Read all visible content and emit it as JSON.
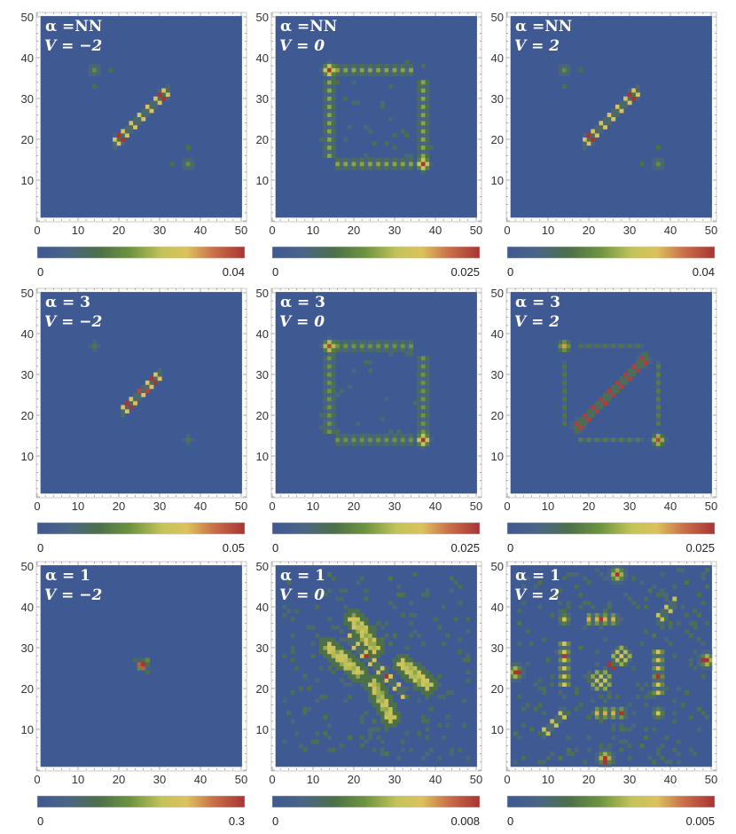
{
  "chart_data": {
    "type": "heatmap",
    "title": "",
    "xlabel": "",
    "ylabel": "",
    "x_range": [
      0,
      50
    ],
    "y_range": [
      0,
      50
    ],
    "x_ticks": [
      "0",
      "10",
      "20",
      "30",
      "40",
      "50"
    ],
    "y_ticks": [
      "10",
      "20",
      "30",
      "40",
      "50"
    ],
    "grid": false,
    "background_color": "#3f5993",
    "colormap": [
      [
        0,
        "#3f5993"
      ],
      [
        0.15,
        "#4a6585"
      ],
      [
        0.3,
        "#4d7048"
      ],
      [
        0.45,
        "#6e9440"
      ],
      [
        0.6,
        "#c3c35a"
      ],
      [
        0.72,
        "#dcc25c"
      ],
      [
        0.85,
        "#c9704a"
      ],
      [
        1,
        "#a83434"
      ]
    ],
    "value_note": "feature levels are fractions of each panel's colorbar maximum",
    "panels": [
      {
        "alpha_label": "α =NN",
        "v_label": "V = −2",
        "cbar_min": "0",
        "cbar_max": "0.04",
        "features": [
          {
            "t": "diag",
            "a": 19,
            "b": 32,
            "k": 0,
            "s": 1,
            "v": 0.7
          },
          {
            "t": "blob",
            "c": [
              20,
              20
            ],
            "r": 1.6,
            "v": 0.3
          },
          {
            "t": "blob",
            "c": [
              31,
              31
            ],
            "r": 1.6,
            "v": 0.3
          },
          {
            "t": "cells",
            "list": [
              [
                20,
                21,
                1
              ],
              [
                21,
                20,
                1
              ],
              [
                30,
                31,
                1
              ],
              [
                31,
                30,
                1
              ],
              [
                19,
                20,
                0.65
              ],
              [
                20,
                19,
                0.65
              ],
              [
                31,
                32,
                0.65
              ],
              [
                32,
                31,
                0.65
              ]
            ]
          },
          {
            "t": "blob",
            "c": [
              14,
              37
            ],
            "r": 1.2,
            "v": 0.42
          },
          {
            "t": "blob",
            "c": [
              37,
              14
            ],
            "r": 1.2,
            "v": 0.42
          },
          {
            "t": "blob",
            "c": [
              18,
              37
            ],
            "r": 0.6,
            "v": 0.3
          },
          {
            "t": "blob",
            "c": [
              14,
              33
            ],
            "r": 0.6,
            "v": 0.3
          },
          {
            "t": "blob",
            "c": [
              33,
              14
            ],
            "r": 0.6,
            "v": 0.3
          },
          {
            "t": "blob",
            "c": [
              37,
              18
            ],
            "r": 0.6,
            "v": 0.3
          }
        ]
      },
      {
        "alpha_label": "α =NN",
        "v_label": "V = 0",
        "cbar_min": "0",
        "cbar_max": "0.025",
        "features": [
          {
            "t": "blob",
            "c": [
              14,
              37
            ],
            "r": 1.4,
            "v": 1
          },
          {
            "t": "blob",
            "c": [
              37,
              14
            ],
            "r": 1.4,
            "v": 1
          },
          {
            "t": "ladder",
            "from": [
              14,
              16
            ],
            "to": [
              14,
              34
            ],
            "w": 1,
            "v": 0.5
          },
          {
            "t": "ladder",
            "from": [
              16,
              37
            ],
            "to": [
              34,
              37
            ],
            "w": 1,
            "v": 0.5
          },
          {
            "t": "ladder",
            "from": [
              37,
              16
            ],
            "to": [
              37,
              34
            ],
            "w": 1,
            "v": 0.5
          },
          {
            "t": "ladder",
            "from": [
              16,
              14
            ],
            "to": [
              34,
              14
            ],
            "w": 1,
            "v": 0.5
          },
          {
            "t": "noise",
            "seed": 5,
            "n": 40,
            "v": 0.3,
            "box": [
              12,
              12,
              39,
              39
            ]
          }
        ]
      },
      {
        "alpha_label": "α =NN",
        "v_label": "V = 2",
        "cbar_min": "0",
        "cbar_max": "0.04",
        "features": [
          {
            "t": "diag",
            "a": 19,
            "b": 32,
            "k": 0,
            "s": 1,
            "v": 0.7
          },
          {
            "t": "blob",
            "c": [
              20,
              20
            ],
            "r": 1.6,
            "v": 0.3
          },
          {
            "t": "blob",
            "c": [
              31,
              31
            ],
            "r": 1.6,
            "v": 0.3
          },
          {
            "t": "cells",
            "list": [
              [
                20,
                21,
                1
              ],
              [
                21,
                20,
                1
              ],
              [
                30,
                31,
                1
              ],
              [
                31,
                30,
                1
              ],
              [
                19,
                20,
                0.65
              ],
              [
                20,
                19,
                0.65
              ],
              [
                31,
                32,
                0.65
              ],
              [
                32,
                31,
                0.65
              ]
            ]
          },
          {
            "t": "blob",
            "c": [
              14,
              37
            ],
            "r": 1.2,
            "v": 0.42
          },
          {
            "t": "blob",
            "c": [
              37,
              14
            ],
            "r": 1.2,
            "v": 0.42
          },
          {
            "t": "blob",
            "c": [
              18,
              37
            ],
            "r": 0.6,
            "v": 0.3
          },
          {
            "t": "blob",
            "c": [
              14,
              33
            ],
            "r": 0.6,
            "v": 0.3
          },
          {
            "t": "blob",
            "c": [
              33,
              14
            ],
            "r": 0.6,
            "v": 0.3
          },
          {
            "t": "blob",
            "c": [
              37,
              18
            ],
            "r": 0.6,
            "v": 0.3
          }
        ]
      },
      {
        "alpha_label": "α = 3",
        "v_label": "V = −2",
        "cbar_min": "0",
        "cbar_max": "0.05",
        "features": [
          {
            "t": "diag",
            "a": 21,
            "b": 30,
            "k": 0,
            "s": 1,
            "v": 0.72
          },
          {
            "t": "blob",
            "c": [
              21.5,
              21.5
            ],
            "r": 1.3,
            "v": 0.3
          },
          {
            "t": "blob",
            "c": [
              29.5,
              29.5
            ],
            "r": 1.3,
            "v": 0.3
          },
          {
            "t": "cells",
            "list": [
              [
                22,
                23,
                1
              ],
              [
                23,
                22,
                1
              ],
              [
                29,
                28,
                1
              ],
              [
                28,
                29,
                1
              ],
              [
                25,
                26,
                0.95
              ],
              [
                27,
                26,
                0.95
              ]
            ]
          },
          {
            "t": "blob",
            "c": [
              14,
              37
            ],
            "r": 1.0,
            "v": 0.32
          },
          {
            "t": "blob",
            "c": [
              37,
              14
            ],
            "r": 1.0,
            "v": 0.32
          }
        ]
      },
      {
        "alpha_label": "α = 3",
        "v_label": "V = 0",
        "cbar_min": "0",
        "cbar_max": "0.025",
        "features": [
          {
            "t": "blob",
            "c": [
              14,
              37
            ],
            "r": 1.4,
            "v": 0.95
          },
          {
            "t": "blob",
            "c": [
              37,
              14
            ],
            "r": 1.4,
            "v": 1
          },
          {
            "t": "ladder",
            "from": [
              14,
              16
            ],
            "to": [
              14,
              34
            ],
            "w": 1,
            "v": 0.45
          },
          {
            "t": "ladder",
            "from": [
              16,
              37
            ],
            "to": [
              34,
              37
            ],
            "w": 1,
            "v": 0.45
          },
          {
            "t": "ladder",
            "from": [
              37,
              16
            ],
            "to": [
              37,
              34
            ],
            "w": 1,
            "v": 0.45
          },
          {
            "t": "ladder",
            "from": [
              16,
              14
            ],
            "to": [
              34,
              14
            ],
            "w": 1,
            "v": 0.45
          },
          {
            "t": "noise",
            "seed": 9,
            "n": 30,
            "v": 0.28,
            "box": [
              12,
              12,
              39,
              39
            ]
          }
        ]
      },
      {
        "alpha_label": "α = 3",
        "v_label": "V = 2",
        "cbar_min": "0",
        "cbar_max": "0.025",
        "features": [
          {
            "t": "diag",
            "a": 17,
            "b": 34,
            "k": 0,
            "s": 1,
            "v": 0.97
          },
          {
            "t": "blob",
            "c": [
              17.5,
              17.5
            ],
            "r": 1.5,
            "v": 0.35
          },
          {
            "t": "blob",
            "c": [
              33.5,
              33.5
            ],
            "r": 1.5,
            "v": 0.35
          },
          {
            "t": "blob",
            "c": [
              14,
              37
            ],
            "r": 1.3,
            "v": 0.78
          },
          {
            "t": "blob",
            "c": [
              37,
              14
            ],
            "r": 1.3,
            "v": 0.95
          },
          {
            "t": "ladder",
            "from": [
              14,
              18
            ],
            "to": [
              14,
              33
            ],
            "w": 0,
            "v": 0.32
          },
          {
            "t": "ladder",
            "from": [
              18,
              37
            ],
            "to": [
              33,
              37
            ],
            "w": 0,
            "v": 0.32
          },
          {
            "t": "ladder",
            "from": [
              37,
              18
            ],
            "to": [
              37,
              33
            ],
            "w": 0,
            "v": 0.35
          },
          {
            "t": "ladder",
            "from": [
              18,
              14
            ],
            "to": [
              33,
              14
            ],
            "w": 0,
            "v": 0.35
          }
        ]
      },
      {
        "alpha_label": "α = 1",
        "v_label": "V = −2",
        "cbar_min": "0",
        "cbar_max": "0.3",
        "features": [
          {
            "t": "blob",
            "c": [
              26,
              26
            ],
            "r": 0.9,
            "v": 1
          },
          {
            "t": "cells",
            "list": [
              [
                25,
                26,
                0.9
              ],
              [
                26,
                25,
                0.9
              ],
              [
                27,
                27,
                0.4
              ],
              [
                25,
                25,
                0.4
              ],
              [
                24,
                27,
                0.3
              ],
              [
                27,
                24,
                0.3
              ]
            ]
          }
        ]
      },
      {
        "alpha_label": "α = 1",
        "v_label": "V = 0",
        "cbar_min": "0",
        "cbar_max": "0.008",
        "features": [
          {
            "t": "noise",
            "seed": 11,
            "n": 230,
            "v": 0.32,
            "box": [
              3,
              3,
              48,
              48
            ]
          },
          {
            "t": "diag",
            "a": 19,
            "b": 32,
            "k": 51,
            "s": -1,
            "v": 0.68
          },
          {
            "t": "cells",
            "list": [
              [
                23,
                28,
                1
              ],
              [
                28,
                23,
                1
              ]
            ]
          },
          {
            "t": "band",
            "from": [
              14,
              30
            ],
            "to": [
              21,
              24
            ],
            "w": 1.3,
            "v": 0.66
          },
          {
            "t": "band",
            "from": [
              32,
              26
            ],
            "to": [
              38,
              21
            ],
            "w": 1.3,
            "v": 0.66
          },
          {
            "t": "band",
            "from": [
              20,
              37
            ],
            "to": [
              25,
              30
            ],
            "w": 1.3,
            "v": 0.66
          },
          {
            "t": "band",
            "from": [
              25,
              21
            ],
            "to": [
              29,
              13
            ],
            "w": 1.3,
            "v": 0.66
          }
        ]
      },
      {
        "alpha_label": "α = 1",
        "v_label": "V = 2",
        "cbar_min": "0",
        "cbar_max": "0.005",
        "features": [
          {
            "t": "noise",
            "seed": 7,
            "n": 260,
            "v": 0.32,
            "box": [
              2,
              2,
              49,
              49
            ]
          },
          {
            "t": "blob",
            "c": [
              2,
              24
            ],
            "r": 1.6,
            "v": 0.8
          },
          {
            "t": "blob",
            "c": [
              49,
              27
            ],
            "r": 1.6,
            "v": 0.8
          },
          {
            "t": "blob",
            "c": [
              27,
              48
            ],
            "r": 1.6,
            "v": 0.8
          },
          {
            "t": "blob",
            "c": [
              24,
              3
            ],
            "r": 1.6,
            "v": 0.8
          },
          {
            "t": "blob",
            "c": [
              14,
              37
            ],
            "r": 1.2,
            "v": 0.7
          },
          {
            "t": "blob",
            "c": [
              37,
              14
            ],
            "r": 1.2,
            "v": 0.7
          },
          {
            "t": "ladder",
            "from": [
              14,
              21
            ],
            "to": [
              14,
              31
            ],
            "w": 1,
            "v": 0.7
          },
          {
            "t": "ladder",
            "from": [
              37,
              19
            ],
            "to": [
              37,
              29
            ],
            "w": 1,
            "v": 0.7
          },
          {
            "t": "ladder",
            "from": [
              20,
              37
            ],
            "to": [
              27,
              37
            ],
            "w": 1,
            "v": 0.75
          },
          {
            "t": "ladder",
            "from": [
              22,
              14
            ],
            "to": [
              29,
              14
            ],
            "w": 1,
            "v": 0.75
          },
          {
            "t": "checker",
            "c": [
              23,
              22
            ],
            "r": 2.6,
            "v": 0.72
          },
          {
            "t": "checker",
            "c": [
              28,
              28
            ],
            "r": 2.6,
            "v": 0.72
          },
          {
            "t": "diag",
            "a": 37,
            "b": 41,
            "k": 0,
            "s": 1,
            "v": 0.6
          },
          {
            "t": "diag",
            "a": 9,
            "b": 14,
            "k": 0,
            "s": 1,
            "v": 0.6
          },
          {
            "t": "cells",
            "list": [
              [
                2,
                24,
                1
              ],
              [
                3,
                24,
                1
              ],
              [
                49,
                27,
                1
              ],
              [
                48,
                27,
                1
              ],
              [
                27,
                48,
                1
              ],
              [
                24,
                3,
                1
              ],
              [
                24,
                2,
                1
              ],
              [
                14,
                28,
                1
              ],
              [
                37,
                23,
                1
              ],
              [
                23,
                37,
                1
              ],
              [
                28,
                14,
                1
              ],
              [
                25,
                26,
                1
              ],
              [
                26,
                25,
                1
              ]
            ]
          }
        ]
      }
    ]
  }
}
